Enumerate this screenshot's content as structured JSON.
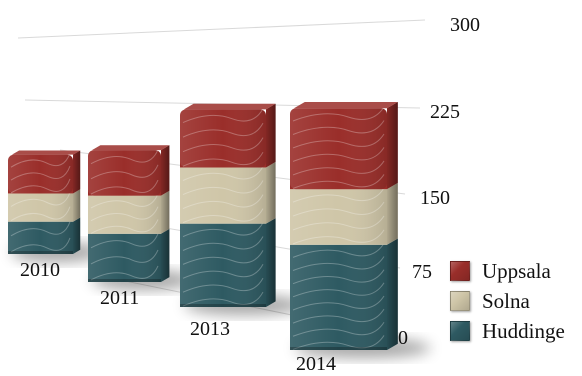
{
  "chart_data": {
    "type": "bar",
    "stacked": true,
    "categories": [
      "2010",
      "2011",
      "2013",
      "2014"
    ],
    "series": [
      {
        "name": "Huddinge",
        "values": [
          40,
          53,
          86,
          104
        ],
        "color": "#2e5a62"
      },
      {
        "name": "Solna",
        "values": [
          35,
          42,
          58,
          55
        ],
        "color": "#cfc6a8"
      },
      {
        "name": "Uppsala",
        "values": [
          48,
          50,
          60,
          80
        ],
        "color": "#9a2e2a"
      }
    ],
    "y_ticks": [
      "0",
      "75",
      "150",
      "225",
      "300"
    ],
    "ylim": [
      0,
      300
    ],
    "grid": true,
    "legend_position": "bottom-right",
    "legend_order": [
      "Uppsala",
      "Solna",
      "Huddinge"
    ],
    "title": "",
    "xlabel": "",
    "ylabel": ""
  }
}
